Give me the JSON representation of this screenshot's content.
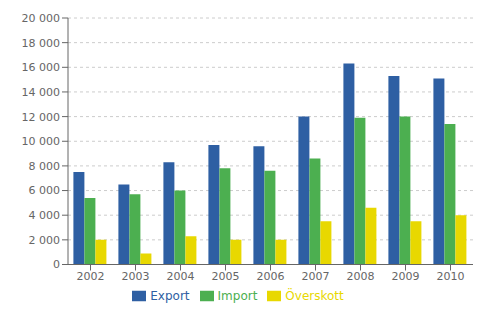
{
  "chart_data": {
    "type": "bar",
    "categories": [
      "2002",
      "2003",
      "2004",
      "2005",
      "2006",
      "2007",
      "2008",
      "2009",
      "2010"
    ],
    "series": [
      {
        "name": "Export",
        "color": "#2E5FA3",
        "values": [
          7500,
          6500,
          8300,
          9700,
          9600,
          12000,
          16300,
          15300,
          15100
        ]
      },
      {
        "name": "Import",
        "color": "#4CAF50",
        "values": [
          5400,
          5700,
          6000,
          7800,
          7600,
          8600,
          11900,
          12000,
          11400
        ]
      },
      {
        "name": "Överskott",
        "color": "#E8D800",
        "values": [
          2000,
          900,
          2300,
          2000,
          2000,
          3500,
          4600,
          3500,
          4000
        ]
      }
    ],
    "ylim": [
      0,
      20000
    ],
    "yticks": [
      0,
      {
        "value": 2000,
        "label": "2 000"
      },
      {
        "value": 4000,
        "label": "4 000"
      },
      {
        "value": 6000,
        "label": "6 000"
      },
      {
        "value": 8000,
        "label": "8 000"
      },
      {
        "value": 10000,
        "label": "10 000"
      },
      {
        "value": 12000,
        "label": "12 000"
      },
      {
        "value": 14000,
        "label": "14 000"
      },
      {
        "value": 16000,
        "label": "16 000"
      },
      {
        "value": 18000,
        "label": "18 000"
      },
      {
        "value": 20000,
        "label": "20 000"
      }
    ],
    "grid": true,
    "legend": "bottom"
  }
}
